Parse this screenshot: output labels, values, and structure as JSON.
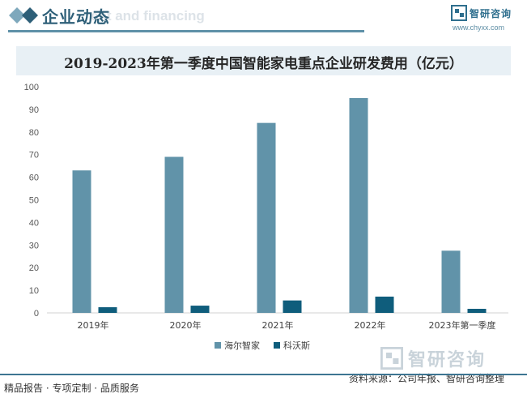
{
  "header": {
    "title": "企业动态",
    "bg_text": "ent and financing",
    "logo_text": "智研咨询",
    "logo_url": "www.chyxx.com"
  },
  "chart_data": {
    "type": "bar",
    "title": "2019-2023年第一季度中国智能家电重点企业研发费用（亿元）",
    "categories": [
      "2019年",
      "2020年",
      "2021年",
      "2022年",
      "2023年第一季度"
    ],
    "series": [
      {
        "name": "海尔智家",
        "values": [
          63,
          69,
          84,
          95,
          27.5
        ],
        "color": "#6193a9"
      },
      {
        "name": "科沃斯",
        "values": [
          2.5,
          3.2,
          5.5,
          7.2,
          1.8
        ],
        "color": "#0f5d7c"
      }
    ],
    "ylim": [
      0,
      100
    ],
    "yticks": [
      0,
      10,
      20,
      30,
      40,
      50,
      60,
      70,
      80,
      90,
      100
    ],
    "grid": false,
    "legend_position": "bottom"
  },
  "footer": {
    "left": "精品报告 · 专项定制 · 品质服务",
    "source": "资料来源：公司年报、智研咨询整理",
    "logo_text": "智研咨询"
  },
  "colors": {
    "brand": "#2e5f78",
    "rule": "#5f91a8",
    "title_band": "#e8f0f5"
  }
}
